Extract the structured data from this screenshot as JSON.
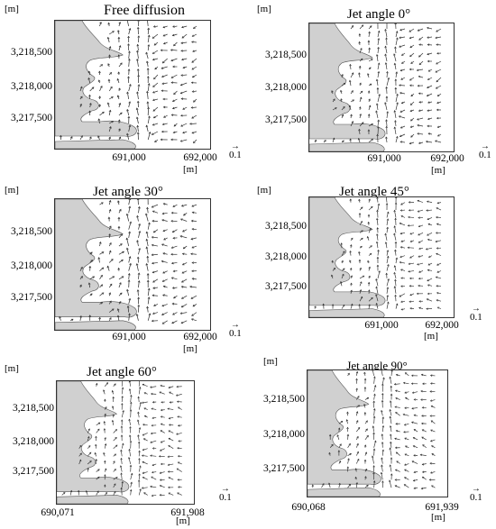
{
  "colors": {
    "land": "#d0d0d0",
    "arrow": "#333333",
    "frame": "#333333"
  },
  "panels": [
    {
      "title": "Free diffusion",
      "y_unit": "[m]",
      "yticks": [
        "3,218,500",
        "3,218,000",
        "3,217,500"
      ],
      "xticks": [
        "691,000",
        "692,000"
      ],
      "x_unit": "[m]",
      "scale_label": "0.1"
    },
    {
      "title": "Jet angle 0°",
      "y_unit": "[m]",
      "yticks": [
        "3,218,500",
        "3,218,000",
        "3,217,500"
      ],
      "xticks": [
        "691,000",
        "692,000"
      ],
      "x_unit": "[m]",
      "scale_label": "0.1"
    },
    {
      "title": "Jet angle 30°",
      "y_unit": "[m]",
      "yticks": [
        "3,218,500",
        "3,218,000",
        "3,217,500"
      ],
      "xticks": [
        "691,000",
        "692,000"
      ],
      "x_unit": "[m]",
      "scale_label": "0.1"
    },
    {
      "title": "Jet angle 45°",
      "y_unit": "[m]",
      "yticks": [
        "3,218,500",
        "3,218,000",
        "3,217,500"
      ],
      "xticks": [
        "691,000",
        "692,000"
      ],
      "x_unit": "[m]",
      "scale_label": "0.1"
    },
    {
      "title": "Jet angle 60°",
      "y_unit": "[m]",
      "yticks": [
        "3,218,500",
        "3,218,000",
        "3,217,500"
      ],
      "xticks": [
        "690,071",
        "691,908"
      ],
      "x_unit": "[m]",
      "scale_label": "0.1"
    },
    {
      "title": "Jet angle 90°",
      "y_unit": "[m]",
      "yticks": [
        "3,218,500",
        "3,218,000",
        "3,217,500"
      ],
      "xticks": [
        "690,068",
        "691,939"
      ],
      "x_unit": "[m]",
      "scale_label": "0.1"
    }
  ]
}
